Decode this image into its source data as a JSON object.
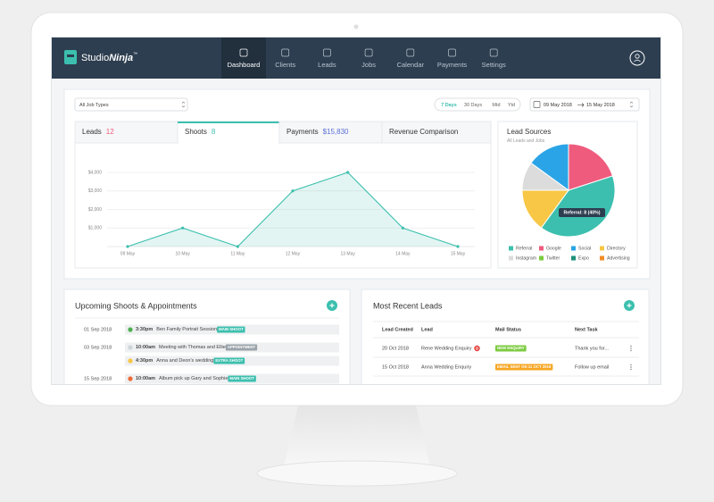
{
  "brand": {
    "studio": "Studio",
    "ninja": "Ninja",
    "tm": "™"
  },
  "nav": {
    "items": [
      "Dashboard",
      "Clients",
      "Leads",
      "Jobs",
      "Calendar",
      "Payments",
      "Settings"
    ],
    "active": 0
  },
  "filters": {
    "job_type": "All Job Types",
    "ranges": [
      "7 Days",
      "30 Days",
      "Mtd",
      "Ytd"
    ],
    "active_range": 0,
    "date_from": "09 May 2018",
    "date_to": "15 May 2018"
  },
  "tabs": {
    "items": [
      {
        "label": "Leads",
        "count": 12,
        "color": "#ef5b7d"
      },
      {
        "label": "Shoots",
        "count": 8,
        "color": "#3cbfae"
      },
      {
        "label": "Payments",
        "count": "$15,830",
        "color": "#5b6fd6"
      },
      {
        "label": "Revenue Comparison"
      }
    ],
    "active": 1
  },
  "chart_data": [
    {
      "type": "line",
      "categories": [
        "09 May",
        "10 May",
        "11 May",
        "12 May",
        "13 May",
        "14 May",
        "15 May"
      ],
      "values": [
        0,
        1000,
        0,
        3000,
        4000,
        1000,
        0
      ],
      "color": "#3cbfae",
      "ylim": [
        0,
        4000
      ],
      "yticks": [
        {
          "value": 1000,
          "label": "$1,000"
        },
        {
          "value": 2000,
          "label": "$2,000"
        },
        {
          "value": 3000,
          "label": "$3,000"
        },
        {
          "value": 4000,
          "label": "$4,000"
        }
      ],
      "grid": true
    },
    {
      "type": "pie",
      "title": "Lead Sources",
      "subtitle": "All Leads and Jobs",
      "categories": [
        "Google",
        "Referral",
        "Directory",
        "Instagram",
        "Social",
        "Twitter",
        "Expo",
        "Advertising"
      ],
      "values": [
        4,
        8,
        3,
        2,
        3,
        0,
        0,
        0
      ],
      "colors": [
        "#ef5b7d",
        "#3cbfae",
        "#f7c745",
        "#dcdcdc",
        "#2aa4e6",
        "#7ccb3f",
        "#1f8f7a",
        "#f28c28"
      ],
      "annotation": "Referral: 8 (40%)"
    }
  ],
  "upcoming": {
    "title": "Upcoming Shoots & Appointments",
    "days": [
      {
        "date": "01 Sep 2018",
        "events": [
          {
            "time": "3:30pm",
            "title": "Ben Family Portrait Session",
            "tag": "MAIN SHOOT",
            "dot": "#4caf50",
            "tag_color": "#3cbfae"
          }
        ]
      },
      {
        "date": "03 Sep 2018",
        "events": [
          {
            "time": "10:00am",
            "title": "Meeting with Thomas and Ellie",
            "tag": "APPOINTMENT",
            "dot": "#cfd4d8",
            "tag_color": "#9aa3aa"
          },
          {
            "time": "4:30pm",
            "title": "Anna and Deon's wedding",
            "tag": "EXTRA SHOOT",
            "dot": "#f7c745",
            "tag_color": "#3cbfae"
          }
        ]
      },
      {
        "date": "15 Sep 2018",
        "events": [
          {
            "time": "10:00am",
            "title": "Album pick up Gary and Sophie",
            "tag": "MAIN SHOOT",
            "dot": "#f06a35",
            "tag_color": "#3cbfae"
          }
        ]
      }
    ]
  },
  "recent_leads": {
    "title": "Most Recent Leads",
    "columns": [
      "Lead Created",
      "Lead",
      "Mail Status",
      "Next Task"
    ],
    "rows": [
      {
        "created": "20 Oct 2018",
        "lead": "Rene Wedding Enquiry",
        "alert": true,
        "status": "NEW ENQUIRY",
        "status_color": "#7ccb3f",
        "task": "Thank you for..."
      },
      {
        "created": "15 Oct 2018",
        "lead": "Anna Wedding Enquiry",
        "status": "EMAIL SENT ON 11 OCT 2018",
        "status_color": "#f5a623",
        "task": "Follow up email"
      }
    ]
  }
}
